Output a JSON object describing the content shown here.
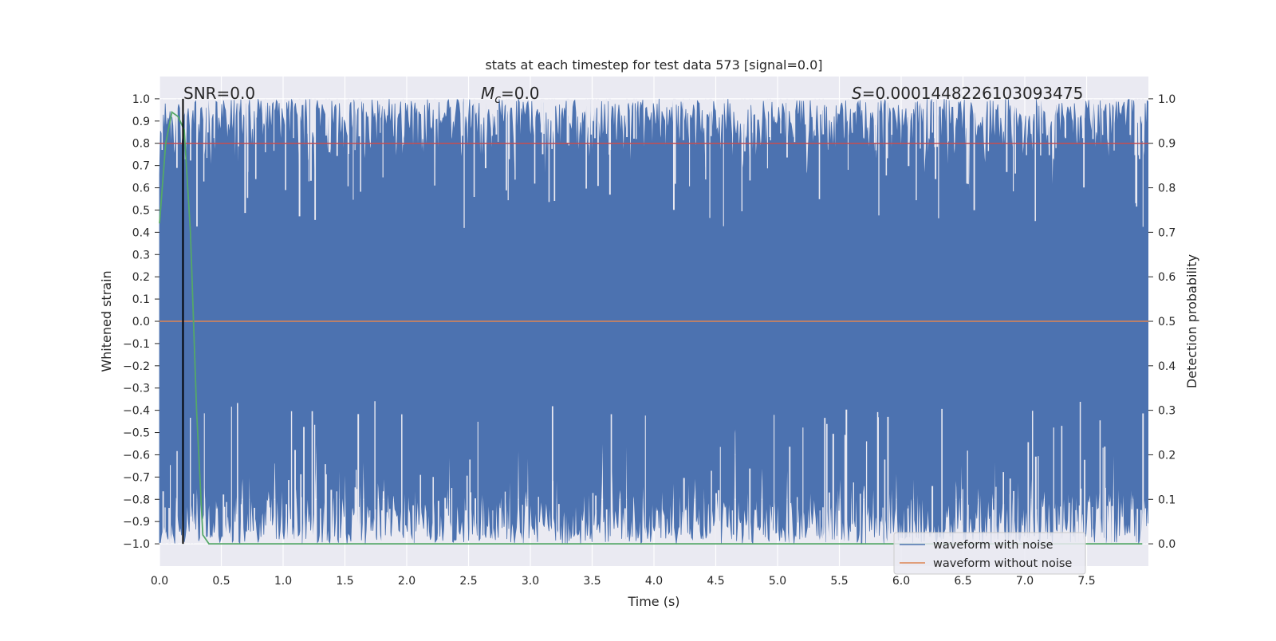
{
  "chart_data": {
    "type": "line",
    "title": "stats at each timestep for test data 573 [signal=0.0]",
    "xlabel": "Time (s)",
    "ylabel_left": "Whitened strain",
    "ylabel_right": "Detection probability",
    "xlim": [
      0.0,
      8.0
    ],
    "ylim_left": [
      -1.1,
      1.1
    ],
    "ylim_right": [
      -0.05,
      1.05
    ],
    "x_ticks": [
      "0.0",
      "0.5",
      "1.0",
      "1.5",
      "2.0",
      "2.5",
      "3.0",
      "3.5",
      "4.0",
      "4.5",
      "5.0",
      "5.5",
      "6.0",
      "6.5",
      "7.0",
      "7.5"
    ],
    "y_left_ticks": [
      "1.0",
      "0.9",
      "0.8",
      "0.7",
      "0.6",
      "0.5",
      "0.4",
      "0.3",
      "0.2",
      "0.1",
      "0.0",
      "−0.1",
      "−0.2",
      "−0.3",
      "−0.4",
      "−0.5",
      "−0.6",
      "−0.7",
      "−0.8",
      "−0.9",
      "−1.0"
    ],
    "y_right_ticks": [
      "1.0",
      "0.9",
      "0.8",
      "0.7",
      "0.6",
      "0.5",
      "0.4",
      "0.3",
      "0.2",
      "0.1",
      "0.0"
    ],
    "grid": true,
    "annotations": {
      "snr": "SNR=0.0",
      "mc_symbol": "M",
      "mc_sub": "c",
      "mc_value": "=0.0",
      "s_symbol": "S",
      "s_value": "=0.0001448226103093475"
    },
    "series": [
      {
        "name": "waveform with noise",
        "axis": "left",
        "color": "#4c72b0",
        "description_values": "dense noise spanning roughly -1.0 to 1.0 across 0 to 8 s",
        "range": [
          -1.0,
          1.0
        ]
      },
      {
        "name": "waveform without noise",
        "axis": "left",
        "color": "#dd8452",
        "x": [
          0.0,
          8.0
        ],
        "y": [
          0.0,
          0.0
        ]
      },
      {
        "axis": "right",
        "color": "#55a868",
        "x": [
          0.0,
          0.05,
          0.1,
          0.15,
          0.2,
          0.25,
          0.3,
          0.35,
          0.4,
          7.95
        ],
        "y": [
          0.72,
          0.9,
          0.97,
          0.96,
          0.93,
          0.7,
          0.3,
          0.02,
          0.0,
          0.0
        ]
      },
      {
        "axis": "right",
        "color": "#c44e52",
        "x": [
          0.0,
          8.0
        ],
        "y": [
          0.9,
          0.9
        ]
      }
    ],
    "vertical_line": {
      "x": 0.19,
      "color": "#000000"
    },
    "legend": {
      "placement": "lower right",
      "entries": [
        "waveform with noise",
        "waveform without noise"
      ]
    }
  }
}
